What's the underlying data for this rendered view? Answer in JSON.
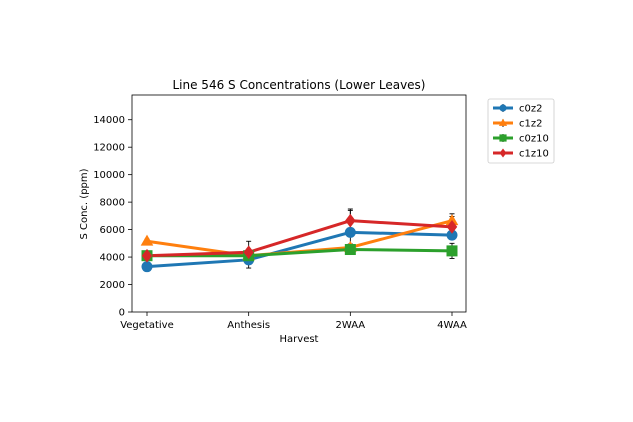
{
  "chart_data": {
    "type": "line",
    "title": "Line 546 S Concentrations (Lower Leaves)",
    "xlabel": "Harvest",
    "ylabel": "S Conc. (ppm)",
    "categories": [
      "Vegetative",
      "Anthesis",
      "2WAA",
      "4WAA"
    ],
    "ylim": [
      0,
      15800
    ],
    "yticks": [
      0,
      2000,
      4000,
      6000,
      8000,
      10000,
      12000,
      14000
    ],
    "grid": false,
    "legend_position": "upper-right-outside",
    "series": [
      {
        "name": "c0z2",
        "color": "#1f77b4",
        "marker": "circle",
        "values": [
          3300,
          3800,
          5800,
          5600
        ],
        "errors": [
          150,
          600,
          1600,
          300
        ]
      },
      {
        "name": "c1z2",
        "color": "#ff7f0e",
        "marker": "triangle-up",
        "values": [
          5150,
          4100,
          4700,
          6650
        ],
        "errors": [
          150,
          450,
          250,
          500
        ]
      },
      {
        "name": "c0z10",
        "color": "#2ca02c",
        "marker": "square",
        "values": [
          4100,
          4100,
          4550,
          4450
        ],
        "errors": [
          150,
          350,
          300,
          550
        ]
      },
      {
        "name": "c1z10",
        "color": "#d62728",
        "marker": "diamond",
        "values": [
          4100,
          4350,
          6650,
          6200
        ],
        "errors": [
          200,
          800,
          850,
          750
        ]
      }
    ]
  }
}
